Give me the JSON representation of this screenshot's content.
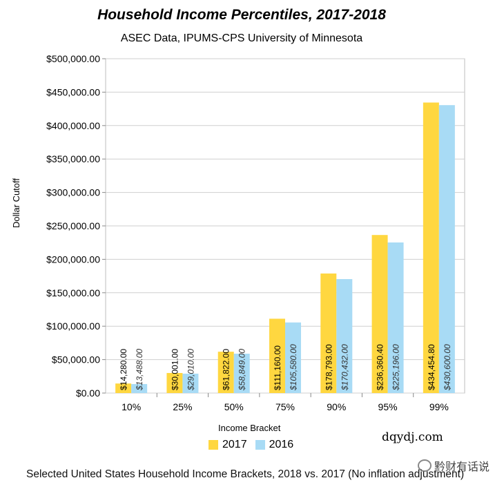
{
  "chart_data": {
    "type": "bar",
    "title": "Household Income Percentiles, 2017-2018",
    "subtitle": "ASEC Data, IPUMS-CPS University of Minnesota",
    "xlabel": "Income Bracket",
    "ylabel": "Dollar Cutoff",
    "categories": [
      "10%",
      "25%",
      "50%",
      "75%",
      "90%",
      "95%",
      "99%"
    ],
    "ylim": [
      0,
      500000
    ],
    "yticks": [
      0,
      50000,
      100000,
      150000,
      200000,
      250000,
      300000,
      350000,
      400000,
      450000,
      500000
    ],
    "ytick_labels": [
      "$0.00",
      "$50,000.00",
      "$100,000.00",
      "$150,000.00",
      "$200,000.00",
      "$250,000.00",
      "$300,000.00",
      "$350,000.00",
      "$400,000.00",
      "$450,000.00",
      "$500,000.00"
    ],
    "grid": true,
    "legend_position": "bottom",
    "series": [
      {
        "name": "2017",
        "color": "#FFD740",
        "values": [
          14280.0,
          30001.0,
          61822.0,
          111160.0,
          178793.0,
          236360.4,
          434454.8
        ],
        "labels": [
          "$14,280.00",
          "$30,001.00",
          "$61,822.00",
          "$111,160.00",
          "$178,793.00",
          "$236,360.40",
          "$434,454.80"
        ]
      },
      {
        "name": "2016",
        "color": "#A8DBF5",
        "values": [
          13488.0,
          29010.0,
          58849.0,
          105580.0,
          170432.0,
          225196.0,
          430600.0
        ],
        "labels": [
          "$13,488.00",
          "$29,010.00",
          "$58,849.00",
          "$105,580.00",
          "$170,432.00",
          "$225,196.00",
          "$430,600.00"
        ]
      }
    ]
  },
  "footer": {
    "caption": "Selected United States Household Income Brackets, 2018 vs. 2017 (No inflation adjustment)",
    "watermark_site": "dqydj.com",
    "watermark_wechat": "黔财有话说"
  }
}
